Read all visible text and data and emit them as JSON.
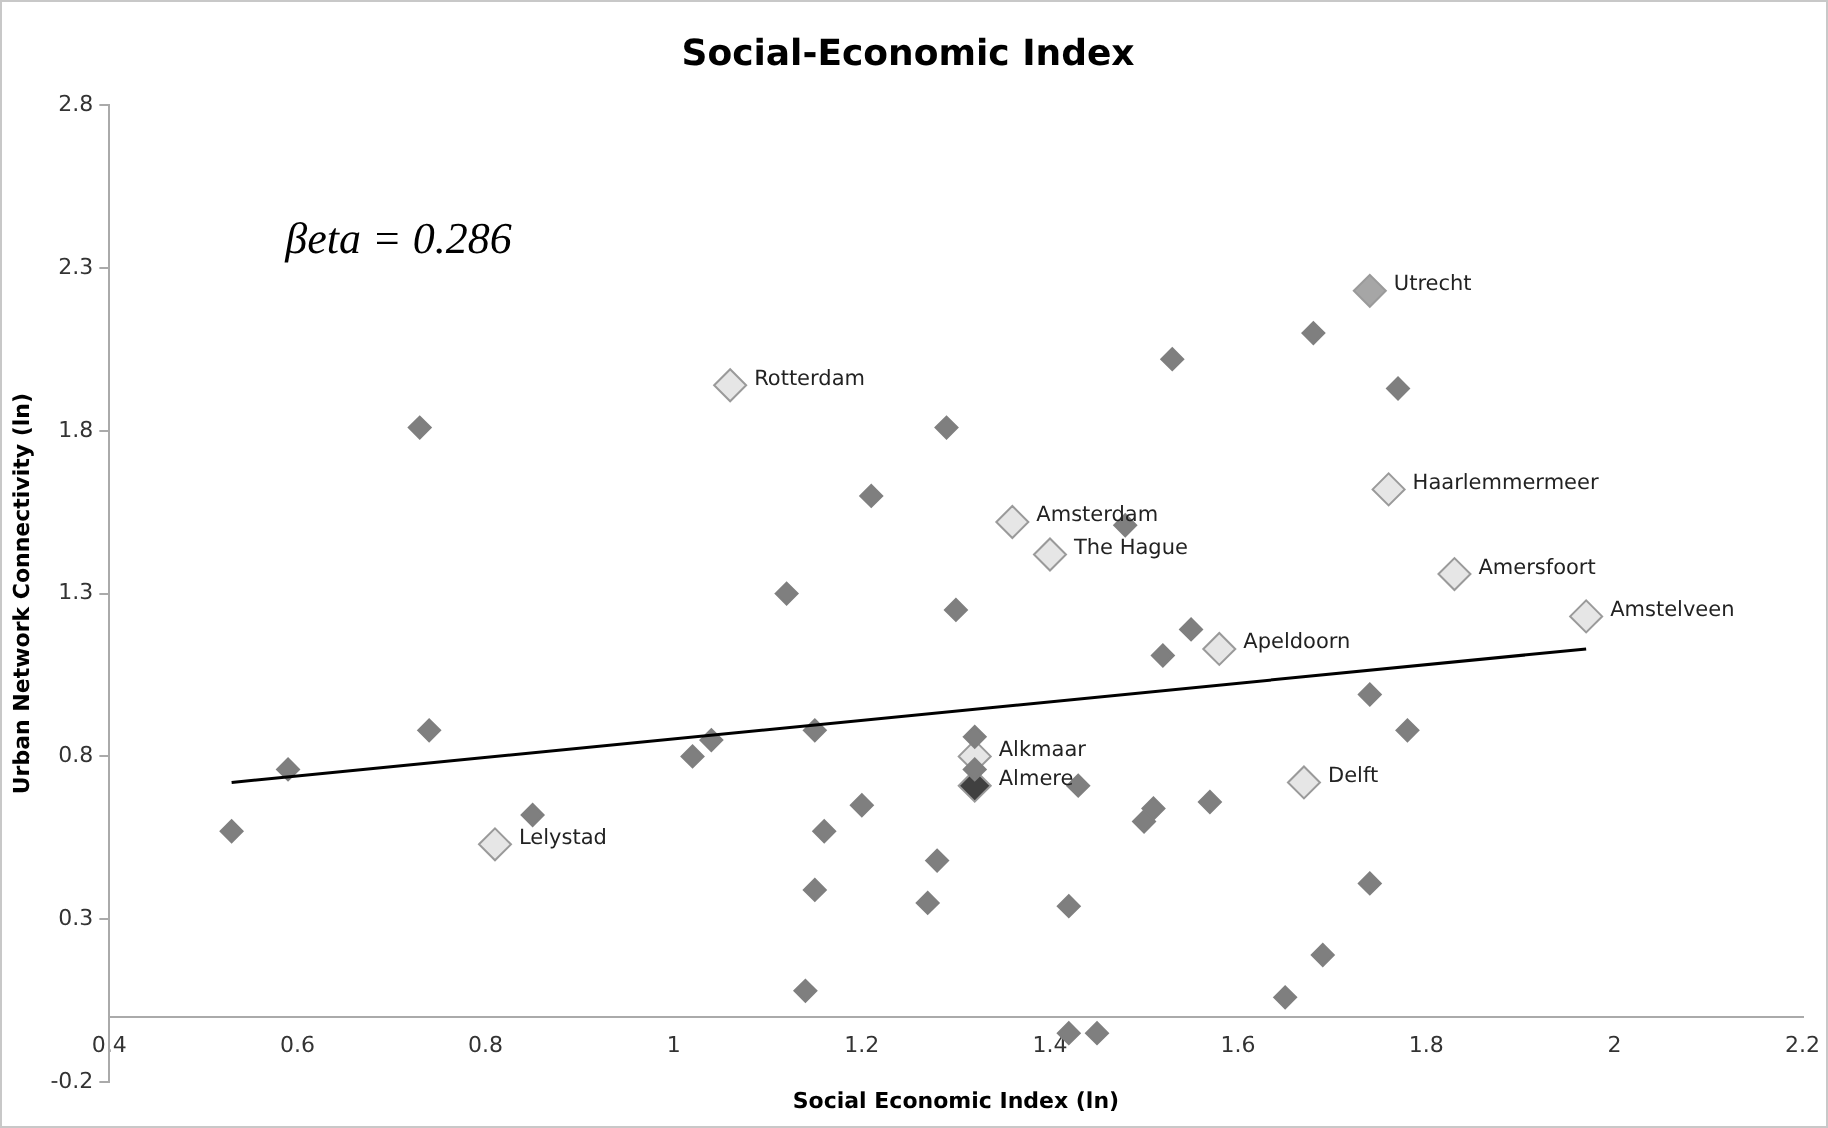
{
  "chart_data": {
    "type": "scatter",
    "title": "Social-Economic Index",
    "xlabel": "Social Economic Index (ln)",
    "ylabel": "Urban Network Connectivity (ln)",
    "xlim": [
      0.4,
      2.2
    ],
    "xticks": [
      0.4,
      0.6,
      0.8,
      1,
      1.2,
      1.4,
      1.6,
      1.8,
      2,
      2.2
    ],
    "ylim": [
      -0.2,
      2.8
    ],
    "yticks": [
      -0.2,
      0.3,
      0.8,
      1.3,
      1.8,
      2.3,
      2.8
    ],
    "grid": false,
    "legend": false,
    "marker": "diamond",
    "series": [
      {
        "color": "#7f7f7f",
        "x": [
          0.53,
          0.59,
          0.74,
          0.85,
          1.02,
          1.04,
          1.12,
          1.15,
          1.2,
          1.16,
          1.15,
          1.14,
          0.73,
          1.21,
          1.68,
          1.53,
          1.77,
          1.29,
          1.48,
          1.3,
          1.55,
          1.52,
          1.74,
          1.78,
          1.32,
          1.32,
          1.43,
          1.51,
          1.5,
          1.57,
          1.28,
          1.27,
          1.42,
          1.74,
          1.69,
          1.65,
          1.42,
          1.45
        ],
        "values": [
          0.57,
          0.76,
          0.88,
          0.62,
          0.8,
          0.85,
          1.3,
          0.88,
          0.65,
          0.57,
          0.39,
          0.08,
          1.81,
          1.6,
          2.1,
          2.02,
          1.93,
          1.81,
          1.51,
          1.25,
          1.19,
          1.11,
          0.99,
          0.88,
          0.86,
          0.76,
          0.71,
          0.64,
          0.6,
          0.66,
          0.48,
          0.35,
          0.34,
          0.41,
          0.19,
          0.06,
          -0.05,
          -0.05
        ]
      },
      {
        "colors": [
          "#e6e6e6",
          "#e6e6e6",
          "#a6a6a6",
          "#e6e6e6",
          "#e6e6e6",
          "#e6e6e6",
          "#e6e6e6",
          "#e6e6e6",
          "#e6e6e6",
          "#e6e6e6",
          "#404040",
          "#e6e6e6"
        ],
        "x": [
          0.81,
          1.06,
          1.74,
          1.76,
          1.36,
          1.4,
          1.83,
          1.97,
          1.58,
          1.32,
          1.32,
          1.67
        ],
        "values": [
          0.53,
          1.94,
          2.23,
          1.62,
          1.52,
          1.42,
          1.36,
          1.23,
          1.13,
          0.8,
          0.71,
          0.72
        ]
      },
      {
        "type": "line",
        "color": "#000000",
        "marker": "none",
        "x": [
          0.53,
          1.97
        ],
        "values": [
          0.72,
          1.13
        ]
      }
    ],
    "annotations": [
      "βeta = 0.286",
      {
        "text": "Lelystad",
        "x": 0.81,
        "y": 0.53
      },
      {
        "text": "Rotterdam",
        "x": 1.06,
        "y": 1.94
      },
      {
        "text": "Utrecht",
        "x": 1.74,
        "y": 2.23
      },
      {
        "text": "Haarlemmermeer",
        "x": 1.76,
        "y": 1.62
      },
      {
        "text": "Amsterdam",
        "x": 1.36,
        "y": 1.52
      },
      {
        "text": "The Hague",
        "x": 1.4,
        "y": 1.42
      },
      {
        "text": "Amersfoort",
        "x": 1.83,
        "y": 1.36
      },
      {
        "text": "Amstelveen",
        "x": 1.97,
        "y": 1.23
      },
      {
        "text": "Apeldoorn",
        "x": 1.58,
        "y": 1.13
      },
      {
        "text": "Alkmaar",
        "x": 1.32,
        "y": 0.8
      },
      {
        "text": "Almere",
        "x": 1.32,
        "y": 0.71
      },
      {
        "text": "Delft",
        "x": 1.67,
        "y": 0.72
      }
    ]
  }
}
